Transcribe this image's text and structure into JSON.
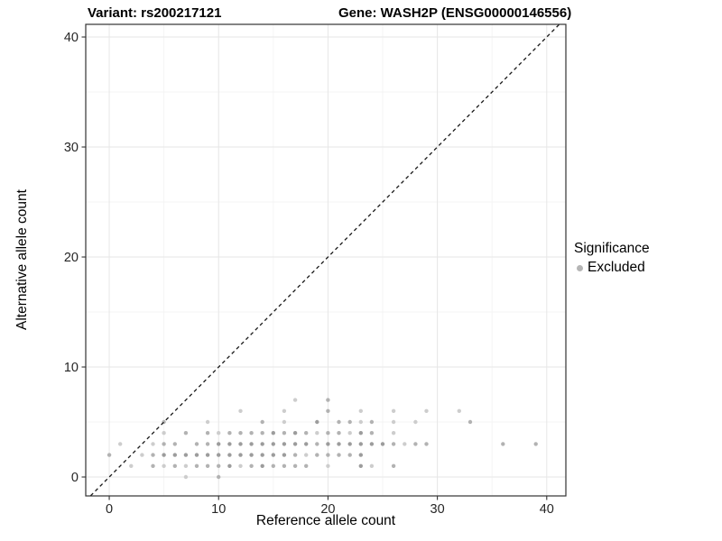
{
  "header": {
    "variant_title": "Variant: rs200217121",
    "gene_title": "Gene: WASH2P (ENSG00000146556)"
  },
  "legend": {
    "title": "Significance",
    "items": [
      {
        "label": "Excluded",
        "color": "#b5b5b5"
      }
    ]
  },
  "chart_data": {
    "type": "scatter",
    "title_left": "Variant: rs200217121",
    "title_right": "Gene: WASH2P (ENSG00000146556)",
    "xlabel": "Reference allele count",
    "ylabel": "Alternative allele count",
    "xlim": [
      -2.15,
      41.75
    ],
    "ylim": [
      -1.72,
      41.15
    ],
    "x_major_ticks": [
      0,
      10,
      20,
      30,
      40
    ],
    "x_minor_ticks": [
      5,
      15,
      25,
      35
    ],
    "y_major_ticks": [
      0,
      10,
      20,
      30,
      40
    ],
    "y_minor_ticks": [
      5,
      15,
      25,
      35
    ],
    "grid": true,
    "legend_position": "right",
    "identity_line": {
      "slope": 1,
      "intercept": 0,
      "style": "dashed",
      "color": "#1a1a1a"
    },
    "shades": {
      "1": "#cdcdcd",
      "2": "#b2b2b2",
      "3": "#9c9c9c"
    },
    "series": [
      {
        "name": "Excluded",
        "points": [
          [
            7,
            0,
            1
          ],
          [
            10,
            0,
            2
          ],
          [
            2,
            1,
            1
          ],
          [
            4,
            1,
            2
          ],
          [
            5,
            1,
            1
          ],
          [
            6,
            1,
            2
          ],
          [
            7,
            1,
            1
          ],
          [
            8,
            1,
            2
          ],
          [
            9,
            1,
            2
          ],
          [
            10,
            1,
            2
          ],
          [
            11,
            1,
            3
          ],
          [
            12,
            1,
            1
          ],
          [
            13,
            1,
            2
          ],
          [
            14,
            1,
            3
          ],
          [
            15,
            1,
            2
          ],
          [
            16,
            1,
            2
          ],
          [
            17,
            1,
            2
          ],
          [
            18,
            1,
            2
          ],
          [
            20,
            1,
            1
          ],
          [
            23,
            1,
            3
          ],
          [
            24,
            1,
            1
          ],
          [
            26,
            1,
            2
          ],
          [
            0,
            2,
            2
          ],
          [
            3,
            2,
            1
          ],
          [
            4,
            2,
            2
          ],
          [
            5,
            2,
            3
          ],
          [
            6,
            2,
            3
          ],
          [
            7,
            2,
            3
          ],
          [
            8,
            2,
            3
          ],
          [
            9,
            2,
            3
          ],
          [
            10,
            2,
            3
          ],
          [
            11,
            2,
            3
          ],
          [
            12,
            2,
            3
          ],
          [
            13,
            2,
            3
          ],
          [
            14,
            2,
            3
          ],
          [
            15,
            2,
            3
          ],
          [
            16,
            2,
            3
          ],
          [
            17,
            2,
            2
          ],
          [
            18,
            2,
            1
          ],
          [
            19,
            2,
            2
          ],
          [
            20,
            2,
            2
          ],
          [
            21,
            2,
            2
          ],
          [
            22,
            2,
            2
          ],
          [
            23,
            2,
            3
          ],
          [
            1,
            3,
            1
          ],
          [
            4,
            3,
            1
          ],
          [
            5,
            3,
            2
          ],
          [
            6,
            3,
            2
          ],
          [
            8,
            3,
            2
          ],
          [
            9,
            3,
            2
          ],
          [
            10,
            3,
            3
          ],
          [
            11,
            3,
            3
          ],
          [
            12,
            3,
            3
          ],
          [
            13,
            3,
            3
          ],
          [
            14,
            3,
            3
          ],
          [
            15,
            3,
            3
          ],
          [
            16,
            3,
            3
          ],
          [
            17,
            3,
            3
          ],
          [
            18,
            3,
            3
          ],
          [
            19,
            3,
            2
          ],
          [
            20,
            3,
            3
          ],
          [
            21,
            3,
            3
          ],
          [
            22,
            3,
            3
          ],
          [
            23,
            3,
            3
          ],
          [
            24,
            3,
            3
          ],
          [
            25,
            3,
            3
          ],
          [
            26,
            3,
            2
          ],
          [
            27,
            3,
            1
          ],
          [
            28,
            3,
            2
          ],
          [
            29,
            3,
            2
          ],
          [
            36,
            3,
            2
          ],
          [
            39,
            3,
            2
          ],
          [
            5,
            4,
            1
          ],
          [
            7,
            4,
            2
          ],
          [
            9,
            4,
            2
          ],
          [
            10,
            4,
            1
          ],
          [
            11,
            4,
            2
          ],
          [
            12,
            4,
            2
          ],
          [
            13,
            4,
            2
          ],
          [
            14,
            4,
            2
          ],
          [
            15,
            4,
            3
          ],
          [
            16,
            4,
            2
          ],
          [
            17,
            4,
            3
          ],
          [
            18,
            4,
            2
          ],
          [
            19,
            4,
            1
          ],
          [
            20,
            4,
            2
          ],
          [
            21,
            4,
            2
          ],
          [
            22,
            4,
            1
          ],
          [
            23,
            4,
            3
          ],
          [
            24,
            4,
            2
          ],
          [
            26,
            4,
            1
          ],
          [
            5,
            5,
            2
          ],
          [
            9,
            5,
            1
          ],
          [
            14,
            5,
            2
          ],
          [
            16,
            5,
            1
          ],
          [
            19,
            5,
            3
          ],
          [
            21,
            5,
            2
          ],
          [
            22,
            5,
            2
          ],
          [
            23,
            5,
            1
          ],
          [
            24,
            5,
            2
          ],
          [
            26,
            5,
            1
          ],
          [
            28,
            5,
            1
          ],
          [
            33,
            5,
            2
          ],
          [
            12,
            6,
            1
          ],
          [
            16,
            6,
            1
          ],
          [
            20,
            6,
            2
          ],
          [
            23,
            6,
            1
          ],
          [
            26,
            6,
            1
          ],
          [
            29,
            6,
            1
          ],
          [
            32,
            6,
            1
          ],
          [
            17,
            7,
            1
          ],
          [
            20,
            7,
            2
          ]
        ]
      }
    ]
  }
}
